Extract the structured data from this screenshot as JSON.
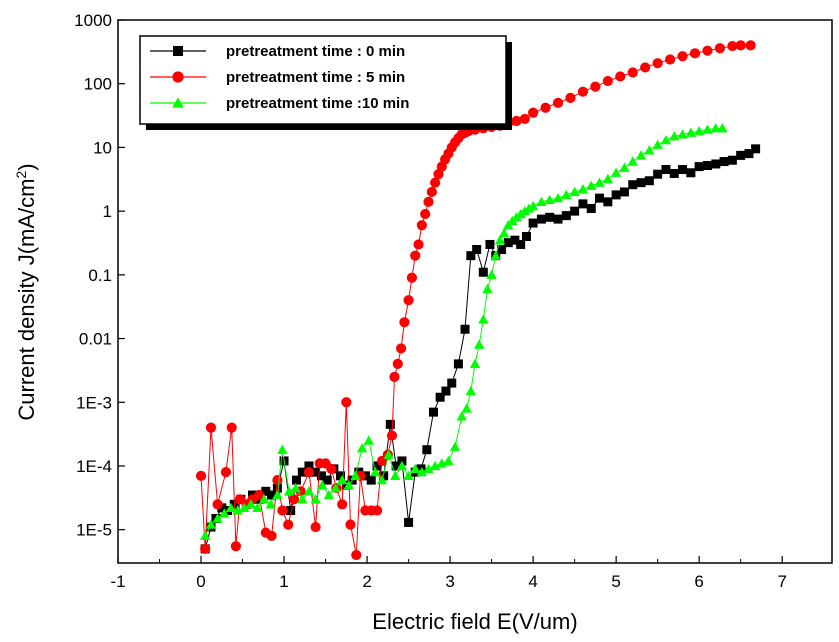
{
  "chart_data": {
    "type": "scatter",
    "title": "",
    "xlabel": "Electric field E(V/um)",
    "ylabel_main": "Current density J(mA/cm",
    "ylabel_sup": "2",
    "ylabel_close": ")",
    "xscale": "linear",
    "yscale": "log",
    "xlim": [
      -1,
      7.6
    ],
    "ylim": [
      3e-06,
      1000
    ],
    "xticks": [
      {
        "v": -1,
        "label": "-1"
      },
      {
        "v": 0,
        "label": "0"
      },
      {
        "v": 1,
        "label": "1"
      },
      {
        "v": 2,
        "label": "2"
      },
      {
        "v": 3,
        "label": "3"
      },
      {
        "v": 4,
        "label": "4"
      },
      {
        "v": 5,
        "label": "5"
      },
      {
        "v": 6,
        "label": "6"
      },
      {
        "v": 7,
        "label": "7"
      }
    ],
    "yticks": [
      {
        "v": 1e-05,
        "label": "1E-5"
      },
      {
        "v": 0.0001,
        "label": "1E-4"
      },
      {
        "v": 0.001,
        "label": "1E-3"
      },
      {
        "v": 0.01,
        "label": "0.01"
      },
      {
        "v": 0.1,
        "label": "0.1"
      },
      {
        "v": 1,
        "label": "1"
      },
      {
        "v": 10,
        "label": "10"
      },
      {
        "v": 100,
        "label": "100"
      },
      {
        "v": 1000,
        "label": "1000"
      }
    ],
    "grid": false,
    "legend_position": "top-left",
    "series": [
      {
        "name": "pretreatment time : 0 min",
        "color": "#000000",
        "marker": "square",
        "x": [
          0.05,
          0.12,
          0.18,
          0.25,
          0.32,
          0.4,
          0.48,
          0.55,
          0.62,
          0.7,
          0.78,
          0.85,
          0.92,
          1.0,
          1.08,
          1.15,
          1.22,
          1.3,
          1.38,
          1.45,
          1.52,
          1.6,
          1.68,
          1.75,
          1.82,
          1.9,
          1.98,
          2.05,
          2.12,
          2.2,
          2.28,
          2.35,
          2.42,
          2.5,
          2.58,
          2.65,
          2.72,
          2.8,
          2.88,
          2.95,
          3.02,
          3.1,
          3.18,
          3.25,
          3.32,
          3.4,
          3.48,
          3.55,
          3.62,
          3.7,
          3.78,
          3.85,
          3.92,
          4.0,
          4.1,
          4.2,
          4.3,
          4.4,
          4.5,
          4.6,
          4.7,
          4.8,
          4.9,
          5.0,
          5.1,
          5.2,
          5.3,
          5.4,
          5.5,
          5.6,
          5.7,
          5.8,
          5.9,
          6.0,
          6.1,
          6.2,
          6.3,
          6.4,
          6.5,
          6.6,
          6.68
        ],
        "y": [
          5e-06,
          1.1e-05,
          1.5e-05,
          2.2e-05,
          2e-05,
          2.5e-05,
          3e-05,
          2.5e-05,
          3.5e-05,
          3e-05,
          4e-05,
          3.5e-05,
          4.5e-05,
          0.00012,
          2e-05,
          6e-05,
          8e-05,
          0.0001,
          8e-05,
          7e-05,
          6e-05,
          9e-05,
          7e-05,
          5e-05,
          6e-05,
          8e-05,
          7e-05,
          6e-05,
          0.0001,
          7e-05,
          0.00045,
          0.0001,
          0.00012,
          1.3e-05,
          8e-05,
          9e-05,
          0.00018,
          0.0007,
          0.0012,
          0.0015,
          0.002,
          0.004,
          0.014,
          0.2,
          0.25,
          0.11,
          0.3,
          0.2,
          0.25,
          0.32,
          0.35,
          0.3,
          0.4,
          0.65,
          0.75,
          0.8,
          0.75,
          0.85,
          1.0,
          1.3,
          1.1,
          1.6,
          1.4,
          1.8,
          2.0,
          2.6,
          2.8,
          3.0,
          3.8,
          4.5,
          3.9,
          4.5,
          4.0,
          5.0,
          5.2,
          5.5,
          6.0,
          6.3,
          7.5,
          8.0,
          9.5
        ]
      },
      {
        "name": "pretreatment time : 5 min",
        "color": "#ff0000",
        "marker": "circle",
        "x": [
          0.0,
          0.05,
          0.12,
          0.2,
          0.3,
          0.37,
          0.42,
          0.47,
          0.55,
          0.62,
          0.7,
          0.78,
          0.85,
          0.92,
          0.98,
          1.05,
          1.12,
          1.2,
          1.3,
          1.38,
          1.43,
          1.5,
          1.57,
          1.63,
          1.7,
          1.75,
          1.8,
          1.87,
          1.92,
          1.98,
          2.05,
          2.12,
          2.18,
          2.25,
          2.3,
          2.33,
          2.37,
          2.41,
          2.45,
          2.5,
          2.54,
          2.58,
          2.62,
          2.66,
          2.7,
          2.74,
          2.78,
          2.82,
          2.86,
          2.9,
          2.94,
          2.98,
          3.02,
          3.06,
          3.1,
          3.14,
          3.18,
          3.22,
          3.3,
          3.4,
          3.5,
          3.6,
          3.7,
          3.8,
          3.9,
          4.0,
          4.15,
          4.3,
          4.45,
          4.6,
          4.75,
          4.9,
          5.05,
          5.2,
          5.35,
          5.5,
          5.65,
          5.8,
          5.95,
          6.1,
          6.25,
          6.4,
          6.5,
          6.62
        ],
        "y": [
          7e-05,
          5e-06,
          0.0004,
          2.5e-05,
          8e-05,
          0.0004,
          5.5e-06,
          3e-05,
          2.5e-05,
          3e-05,
          3.5e-05,
          9e-06,
          8e-06,
          6e-05,
          2e-05,
          1.2e-05,
          3e-05,
          4e-05,
          8e-05,
          1.1e-05,
          0.00011,
          0.00011,
          9e-05,
          4.5e-05,
          2.5e-05,
          0.001,
          1.2e-05,
          4e-06,
          7e-05,
          2e-05,
          2e-05,
          2e-05,
          0.00012,
          0.00015,
          0.0003,
          0.0025,
          0.004,
          0.007,
          0.018,
          0.04,
          0.09,
          0.2,
          0.3,
          0.6,
          0.9,
          1.4,
          2.0,
          2.8,
          3.8,
          5.0,
          6.5,
          8.0,
          10.0,
          12.0,
          14.0,
          16.0,
          17.0,
          18.0,
          19.0,
          20.0,
          21.0,
          22.0,
          24.0,
          26.0,
          28.0,
          35.0,
          42.0,
          50.0,
          60.0,
          75.0,
          90.0,
          110.0,
          130.0,
          150.0,
          180.0,
          210.0,
          240.0,
          270.0,
          300.0,
          330.0,
          360.0,
          390.0,
          400.0,
          400.0
        ]
      },
      {
        "name": "pretreatment time :10 min",
        "color": "#00ff00",
        "marker": "triangle",
        "x": [
          0.05,
          0.12,
          0.2,
          0.28,
          0.36,
          0.44,
          0.52,
          0.6,
          0.68,
          0.76,
          0.84,
          0.92,
          0.98,
          1.06,
          1.14,
          1.22,
          1.3,
          1.38,
          1.46,
          1.54,
          1.62,
          1.7,
          1.78,
          1.86,
          1.94,
          2.02,
          2.1,
          2.18,
          2.26,
          2.34,
          2.42,
          2.5,
          2.58,
          2.66,
          2.74,
          2.82,
          2.9,
          2.98,
          3.06,
          3.14,
          3.2,
          3.25,
          3.3,
          3.35,
          3.4,
          3.45,
          3.5,
          3.55,
          3.6,
          3.65,
          3.7,
          3.75,
          3.8,
          3.85,
          3.9,
          3.95,
          4.0,
          4.1,
          4.2,
          4.3,
          4.4,
          4.5,
          4.6,
          4.7,
          4.8,
          4.9,
          5.0,
          5.1,
          5.2,
          5.3,
          5.4,
          5.5,
          5.6,
          5.7,
          5.8,
          5.9,
          6.0,
          6.1,
          6.2,
          6.28
        ],
        "y": [
          8e-06,
          1.2e-05,
          1.5e-05,
          1.8e-05,
          2.2e-05,
          2e-05,
          2.2e-05,
          2.5e-05,
          2.2e-05,
          3e-05,
          2.5e-05,
          3.5e-05,
          0.00018,
          4e-05,
          4.5e-05,
          3e-05,
          4e-05,
          3e-05,
          5e-05,
          3.5e-05,
          4.5e-05,
          6e-05,
          5e-05,
          7e-05,
          0.00019,
          0.00025,
          8e-05,
          6e-05,
          0.00015,
          7e-05,
          0.0001,
          7e-05,
          9e-05,
          8e-05,
          9e-05,
          0.0001,
          0.00011,
          0.00012,
          0.0002,
          0.0006,
          0.0008,
          0.0015,
          0.004,
          0.008,
          0.02,
          0.06,
          0.1,
          0.2,
          0.35,
          0.45,
          0.6,
          0.7,
          0.8,
          0.9,
          1.0,
          1.1,
          1.2,
          1.4,
          1.5,
          1.6,
          1.8,
          2.0,
          2.2,
          2.5,
          2.8,
          3.2,
          4.0,
          4.8,
          6.0,
          7.5,
          9.0,
          11.0,
          13.0,
          15.0,
          16.0,
          17.0,
          18.0,
          19.0,
          20.0,
          20.0
        ]
      }
    ]
  }
}
